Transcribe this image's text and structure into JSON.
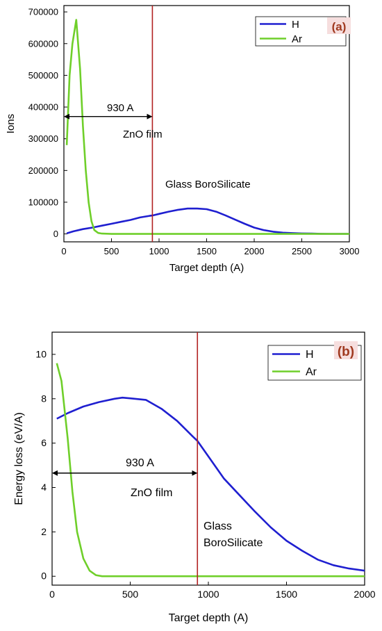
{
  "panels": [
    {
      "chart_data": {
        "type": "line",
        "panel_label": "(a)",
        "xlabel": "Target depth (A)",
        "ylabel": "Ions",
        "xlim": [
          0,
          3000
        ],
        "ylim": [
          -25000,
          720000
        ],
        "x_ticks": [
          0,
          500,
          1000,
          1500,
          2000,
          2500,
          3000
        ],
        "x_tick_labels": [
          "0",
          "500",
          "1000",
          "1500",
          "2000",
          "2500",
          "3000"
        ],
        "y_ticks": [
          0,
          100000,
          200000,
          300000,
          400000,
          500000,
          600000,
          700000
        ],
        "y_tick_labels": [
          "0",
          "100000",
          "200000",
          "300000",
          "400000",
          "500000",
          "600000",
          "700000"
        ],
        "grid": false,
        "legend_position": "top-right",
        "series": [
          {
            "name": "H",
            "color": "#1f1fd0",
            "x": [
              30,
              100,
              200,
              300,
              400,
              500,
              600,
              700,
              800,
              900,
              930,
              1000,
              1100,
              1200,
              1300,
              1400,
              1500,
              1600,
              1700,
              1800,
              1900,
              2000,
              2100,
              2200,
              2300,
              2400,
              2500,
              2600,
              2700,
              2800,
              2900,
              3000
            ],
            "y": [
              2000,
              8000,
              15000,
              20000,
              26000,
              32000,
              38000,
              44000,
              52000,
              57000,
              58000,
              63000,
              70000,
              76000,
              80000,
              80000,
              78000,
              70000,
              58000,
              45000,
              32000,
              20000,
              12000,
              7000,
              4000,
              2500,
              1500,
              1000,
              500,
              300,
              200,
              100
            ]
          },
          {
            "name": "Ar",
            "color": "#6fcf2a",
            "x": [
              30,
              60,
              90,
              130,
              170,
              200,
              230,
              260,
              290,
              320,
              360,
              400,
              500,
              1000,
              1500,
              2000,
              2500,
              3000
            ],
            "y": [
              280000,
              500000,
              600000,
              675000,
              520000,
              340000,
              200000,
              100000,
              40000,
              12000,
              3000,
              1000,
              0,
              0,
              0,
              0,
              0,
              0
            ]
          }
        ],
        "annotations": {
          "vertical_line_x": 930,
          "vertical_line_color": "#b22222",
          "arrow_from_x": 0,
          "arrow_to_x": 930,
          "arrow_y": 370000,
          "dimension_text": "930 A",
          "region_text": "ZnO film",
          "substrate_text": [
            "Glass BoroSilicate"
          ]
        }
      }
    },
    {
      "chart_data": {
        "type": "line",
        "panel_label": "(b)",
        "xlabel": "Target depth (A)",
        "ylabel": "Energy loss (eV/A)",
        "xlim": [
          0,
          2000
        ],
        "ylim": [
          -0.4,
          11
        ],
        "x_ticks": [
          0,
          500,
          1000,
          1500,
          2000
        ],
        "x_tick_labels": [
          "0",
          "500",
          "1000",
          "1500",
          "2000"
        ],
        "y_ticks": [
          0,
          2,
          4,
          6,
          8,
          10
        ],
        "y_tick_labels": [
          "0",
          "2",
          "4",
          "6",
          "8",
          "10"
        ],
        "grid": false,
        "legend_position": "top-right",
        "series": [
          {
            "name": "H",
            "color": "#1f1fd0",
            "x": [
              30,
              100,
              200,
              300,
              400,
              450,
              500,
              600,
              700,
              800,
              900,
              930,
              1000,
              1100,
              1200,
              1300,
              1400,
              1500,
              1600,
              1700,
              1800,
              1900,
              2000
            ],
            "y": [
              7.1,
              7.35,
              7.65,
              7.85,
              8.0,
              8.05,
              8.02,
              7.95,
              7.55,
              7.0,
              6.3,
              6.1,
              5.4,
              4.4,
              3.65,
              2.9,
              2.2,
              1.6,
              1.15,
              0.75,
              0.5,
              0.35,
              0.25
            ]
          },
          {
            "name": "Ar",
            "color": "#6fcf2a",
            "x": [
              30,
              60,
              100,
              130,
              160,
              200,
              240,
              280,
              320,
              400,
              600,
              1000,
              1500,
              2000
            ],
            "y": [
              9.6,
              8.8,
              6.2,
              3.8,
              2.0,
              0.8,
              0.25,
              0.05,
              0.0,
              0.0,
              0.0,
              0.0,
              0.0,
              0.0
            ]
          }
        ],
        "annotations": {
          "vertical_line_x": 930,
          "vertical_line_color": "#b22222",
          "arrow_from_x": 0,
          "arrow_to_x": 930,
          "arrow_y": 4.65,
          "dimension_text": "930 A",
          "region_text": "ZnO film",
          "substrate_text": [
            "Glass",
            "BoroSilicate"
          ]
        }
      }
    }
  ]
}
